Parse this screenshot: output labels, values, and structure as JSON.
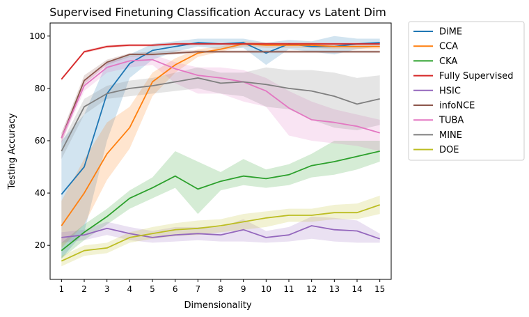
{
  "chart_data": {
    "type": "line",
    "title": "Supervised Finetuning Classification Accuracy vs Latent Dim",
    "xlabel": "Dimensionality",
    "ylabel": "Testing Accuracy",
    "x": [
      1,
      2,
      3,
      4,
      5,
      6,
      7,
      8,
      9,
      10,
      11,
      12,
      13,
      14,
      15
    ],
    "xlim": [
      0.5,
      15.5
    ],
    "ylim": [
      7,
      105
    ],
    "yticks": [
      20,
      40,
      60,
      80,
      100
    ],
    "grid": false,
    "legend_position": "outside-right",
    "series": [
      {
        "name": "DiME",
        "color": "#1f77b4",
        "values": [
          39.5,
          50,
          78,
          89.5,
          94.5,
          96,
          97.5,
          97,
          97.5,
          93.5,
          97,
          96,
          96,
          97,
          97.5
        ],
        "lower": [
          15,
          25,
          60,
          84,
          91,
          94,
          96,
          95,
          95.5,
          89,
          95,
          94,
          93,
          95,
          96
        ],
        "upper": [
          60,
          70,
          90,
          93,
          97,
          98,
          99,
          99,
          99,
          97.5,
          98.5,
          98,
          100,
          99,
          99
        ]
      },
      {
        "name": "CCA",
        "color": "#ff7f0e",
        "values": [
          27.5,
          40,
          55,
          65,
          82.5,
          89,
          93.5,
          95,
          97,
          96.5,
          96.5,
          96.5,
          96,
          96,
          96
        ],
        "lower": [
          19,
          28,
          45,
          57,
          77,
          86,
          92,
          94,
          96,
          95.5,
          95.5,
          95.5,
          95,
          95,
          95
        ],
        "upper": [
          37,
          53,
          67,
          73,
          86,
          91.5,
          95,
          96,
          98,
          97.5,
          97.5,
          97.5,
          97,
          97,
          97
        ]
      },
      {
        "name": "CKA",
        "color": "#2ca02c",
        "values": [
          18,
          25,
          31,
          38,
          42,
          46.5,
          41.5,
          44.5,
          46.5,
          45.5,
          47,
          50.5,
          52,
          54,
          56
        ],
        "lower": [
          15,
          22,
          28,
          34,
          38,
          42,
          32,
          41,
          43,
          42,
          43,
          46,
          47,
          49,
          52
        ],
        "upper": [
          21,
          28,
          34,
          41,
          46,
          56,
          52,
          48,
          53,
          49,
          51,
          55,
          60,
          60,
          60
        ]
      },
      {
        "name": "Fully Supervised",
        "color": "#d62728",
        "values": [
          83.5,
          94,
          96,
          96.5,
          96.5,
          97,
          97,
          97,
          97,
          97,
          97,
          97,
          97,
          97,
          97
        ],
        "lower": [
          83,
          93.5,
          95.5,
          96,
          96,
          96.5,
          96.5,
          96.5,
          96.5,
          96.5,
          96.5,
          96.5,
          96.5,
          96.5,
          96.5
        ],
        "upper": [
          84,
          94.5,
          96.5,
          97,
          97,
          97.5,
          97.5,
          97.5,
          97.5,
          97.5,
          97.5,
          97.5,
          97.5,
          97.5,
          97.5
        ]
      },
      {
        "name": "HSIC",
        "color": "#9467bd",
        "values": [
          23,
          24,
          26.5,
          24.5,
          23,
          24,
          24.5,
          24,
          26,
          23,
          24,
          27.5,
          26,
          25.5,
          22.5
        ],
        "lower": [
          21,
          22,
          24,
          22,
          21,
          21.5,
          22,
          21.5,
          21.5,
          21,
          21.5,
          22.5,
          21.5,
          21,
          21
        ],
        "upper": [
          25,
          26,
          29,
          27,
          25.5,
          27,
          27,
          27,
          30,
          25.5,
          27,
          31,
          30.5,
          29.5,
          24.5
        ]
      },
      {
        "name": "infoNCE",
        "color": "#8c564b",
        "values": [
          61,
          83,
          90,
          93,
          93,
          93.5,
          94,
          94,
          94,
          94,
          94,
          94,
          94,
          94,
          94
        ],
        "lower": [
          59,
          81.5,
          89,
          92,
          92.5,
          93,
          93.5,
          93.5,
          93.5,
          93.5,
          93.5,
          93.5,
          93.5,
          93.5,
          93.5
        ],
        "upper": [
          63,
          85,
          91,
          93.5,
          94,
          94.5,
          94.5,
          94.5,
          94.5,
          94.5,
          94.5,
          94.5,
          94.5,
          94.5,
          94.5
        ]
      },
      {
        "name": "TUBA",
        "color": "#e377c2",
        "values": [
          61,
          81,
          88,
          90.5,
          91,
          87.5,
          85,
          84,
          82.5,
          79,
          72.5,
          68,
          67,
          65.5,
          63
        ],
        "lower": [
          59,
          79,
          86,
          88,
          89,
          82,
          78,
          78,
          75,
          73,
          62,
          60,
          59,
          58,
          56
        ],
        "upper": [
          63,
          83,
          90,
          92,
          93,
          90,
          88,
          88,
          87,
          84,
          79,
          75,
          72,
          70,
          68
        ]
      },
      {
        "name": "MINE",
        "color": "#7f7f7f",
        "values": [
          56,
          73,
          78,
          80,
          81,
          82.5,
          84,
          82,
          82.5,
          81.5,
          80,
          79,
          77,
          74,
          76
        ],
        "lower": [
          53,
          70,
          76,
          77,
          78,
          79,
          80,
          78,
          77,
          73,
          72,
          68,
          65,
          64,
          66
        ],
        "upper": [
          59,
          76,
          81,
          83,
          84,
          86,
          88,
          86,
          86,
          88,
          87,
          87,
          86,
          84,
          85
        ]
      },
      {
        "name": "DOE",
        "color": "#bcbd22",
        "values": [
          14,
          18,
          19,
          23,
          24.5,
          26,
          26.5,
          27.5,
          29,
          30.5,
          31.5,
          31.5,
          32.5,
          32.5,
          35.5
        ],
        "lower": [
          12,
          16,
          17,
          21,
          22.5,
          23.5,
          24,
          25,
          26,
          27,
          29,
          29,
          30,
          30,
          32
        ],
        "upper": [
          16,
          20,
          21,
          25,
          27,
          28.5,
          29.5,
          30,
          32,
          33,
          34,
          34,
          35.5,
          36,
          39
        ]
      }
    ]
  }
}
